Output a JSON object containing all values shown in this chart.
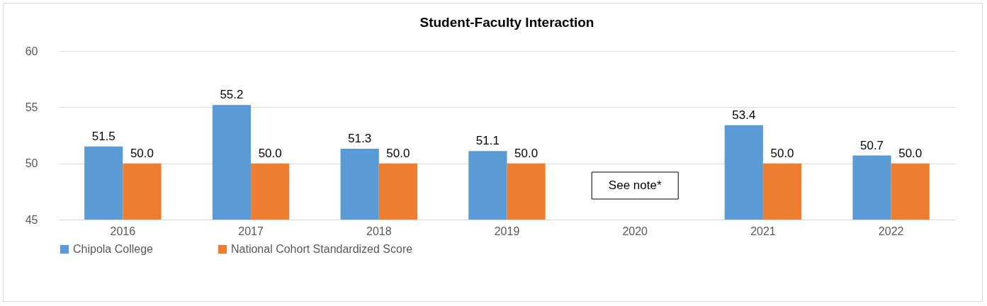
{
  "chart_data": {
    "type": "bar",
    "title": "Student-Faculty Interaction",
    "categories": [
      "2016",
      "2017",
      "2018",
      "2019",
      "2020",
      "2021",
      "2022"
    ],
    "series": [
      {
        "name": "Chipola College",
        "color": "#5b9bd5",
        "values": [
          51.5,
          55.2,
          51.3,
          51.1,
          null,
          53.4,
          50.7
        ],
        "value_labels": [
          "51.5",
          "55.2",
          "51.3",
          "51.1",
          null,
          "53.4",
          "50.7"
        ]
      },
      {
        "name": "National Cohort Standardized Score",
        "color": "#ed7d31",
        "values": [
          50,
          50,
          50,
          50,
          null,
          50,
          50
        ],
        "value_labels": [
          "50.0",
          "50.0",
          "50.0",
          "50.0",
          null,
          "50.0",
          "50.0"
        ]
      }
    ],
    "ylim": [
      45,
      60
    ],
    "yticks": [
      45,
      50,
      55,
      60
    ],
    "grid": "y",
    "legend": "bottom",
    "annotations": [
      "See note*"
    ]
  }
}
